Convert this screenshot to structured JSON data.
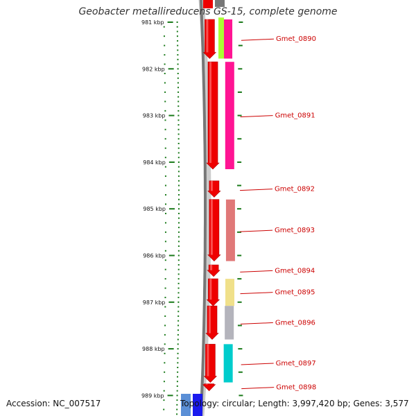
{
  "title": "Geobacter metallireducens GS-15, complete genome",
  "accession": "Accession: NC_007517",
  "stats": "Topology: circular; Length: 3,997,420 bp; Genes: 3,577",
  "colors": {
    "tick": "#1a7a1a",
    "backbone": "#777777",
    "label": "#cc0000",
    "cds_forward": "#ee0000"
  },
  "scale": {
    "unit": "kbp",
    "ticks": [
      {
        "kbp": 981,
        "label": "981 kbp"
      },
      {
        "kbp": 982,
        "label": "982 kbp"
      },
      {
        "kbp": 983,
        "label": "983 kbp"
      },
      {
        "kbp": 984,
        "label": "984 kbp"
      },
      {
        "kbp": 985,
        "label": "985 kbp"
      },
      {
        "kbp": 986,
        "label": "986 kbp"
      },
      {
        "kbp": 987,
        "label": "987 kbp"
      },
      {
        "kbp": 988,
        "label": "988 kbp"
      },
      {
        "kbp": 989,
        "label": "989 kbp"
      }
    ]
  },
  "genes": [
    {
      "name": "Gmet_0890",
      "start": 980.9,
      "end": 981.78,
      "color": "#ff1493",
      "cog_start": 980.9,
      "cog_end": 981.78,
      "cog_color": "#aaff33"
    },
    {
      "name": "Gmet_0891",
      "start": 981.85,
      "end": 984.15,
      "color": "#ff1493"
    },
    {
      "name": "Gmet_0892",
      "start": 984.4,
      "end": 984.75,
      "color": null
    },
    {
      "name": "Gmet_0893",
      "start": 984.8,
      "end": 986.12,
      "color": "#e07878"
    },
    {
      "name": "Gmet_0894",
      "start": 986.2,
      "end": 986.45,
      "color": null
    },
    {
      "name": "Gmet_0895",
      "start": 986.5,
      "end": 987.08,
      "color": "#f0e08a"
    },
    {
      "name": "Gmet_0896",
      "start": 987.08,
      "end": 987.8,
      "color": "#b4b4bc"
    },
    {
      "name": "Gmet_0897",
      "start": 987.9,
      "end": 988.72,
      "color": "#00cccc"
    },
    {
      "name": "Gmet_0898",
      "start": 988.75,
      "end": 988.9,
      "color": null
    }
  ]
}
